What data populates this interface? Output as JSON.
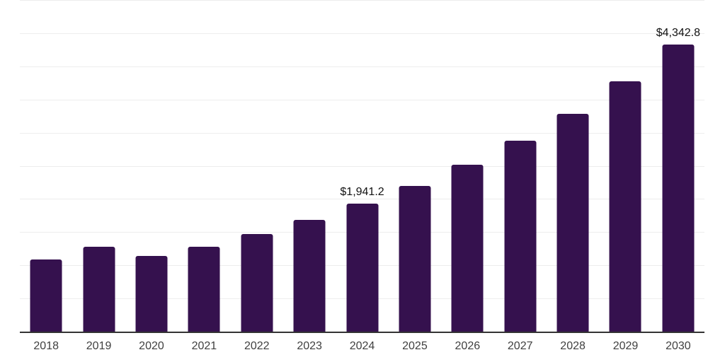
{
  "chart_data": {
    "type": "bar",
    "title": "",
    "xlabel": "",
    "ylabel": "",
    "categories": [
      "2018",
      "2019",
      "2020",
      "2021",
      "2022",
      "2023",
      "2024",
      "2025",
      "2026",
      "2027",
      "2028",
      "2029",
      "2030"
    ],
    "values": [
      1095,
      1285,
      1150,
      1295,
      1480,
      1695,
      1941.2,
      2205,
      2530,
      2890,
      3295,
      3785,
      4342.8
    ],
    "value_labels": [
      {
        "index": 6,
        "text": "$1,941.2"
      },
      {
        "index": 12,
        "text": "$4,342.8"
      }
    ],
    "ylim": [
      0,
      5000
    ],
    "grid_step": 500,
    "grid": true,
    "legend": false,
    "colors": {
      "bar": "#35114E",
      "gridline": "#ededed",
      "axis_line": "#333333",
      "tick_label": "#404040",
      "value_label": "#111111",
      "background": "#ffffff"
    }
  }
}
